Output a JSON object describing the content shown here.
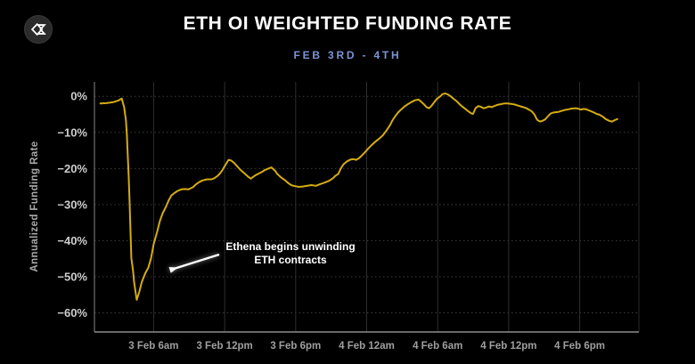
{
  "header": {
    "title": "ETH OI WEIGHTED FUNDING RATE",
    "subtitle": "FEB 3RD - 4TH"
  },
  "logo": {
    "glyph": "diamond-sigma"
  },
  "colors": {
    "background": "#000000",
    "title": "#ffffff",
    "subtitle": "#7b94d3",
    "line": "#d4ac12",
    "grid_horizontal": "#3c3c3c",
    "grid_vertical": "#2f2f2f",
    "axis": "#8c8c8c",
    "y_tick_text": "#cdcdcd",
    "x_tick_text": "#9f9f9f",
    "annotation_text": "#ffffff"
  },
  "chart_data": {
    "type": "line",
    "title": "ETH OI WEIGHTED FUNDING RATE",
    "subtitle": "FEB 3RD - 4TH",
    "xlabel": "",
    "ylabel": "Annualized Funding Rate",
    "x_unit": "hours since 3 Feb 12am",
    "x_range": [
      1,
      47
    ],
    "y_range": [
      -65.3,
      4
    ],
    "y_ticks": [
      0,
      -10,
      -20,
      -30,
      -40,
      -50,
      -60
    ],
    "y_tick_labels": [
      "0%",
      "−10%",
      "−20%",
      "−30%",
      "−40%",
      "−50%",
      "−60%"
    ],
    "x_ticks": [
      6,
      12,
      18,
      24,
      30,
      36,
      42
    ],
    "x_tick_labels": [
      "3 Feb 6am",
      "3 Feb 12pm",
      "3 Feb 6pm",
      "4 Feb 12am",
      "4 Feb 6am",
      "4 Feb 12pm",
      "4 Feb 6pm"
    ],
    "grid": {
      "horizontal": "dotted",
      "vertical": "solid"
    },
    "legend": "none",
    "annotation": {
      "line1": "Ethena begins unwinding",
      "line2": "ETH contracts"
    },
    "series": [
      {
        "name": "ETH OI weighted funding rate (annualized %)",
        "color": "#d4ac12",
        "points": [
          [
            1.5,
            -2.0
          ],
          [
            2.0,
            -1.9
          ],
          [
            2.6,
            -1.6
          ],
          [
            3.0,
            -1.2
          ],
          [
            3.3,
            -0.6
          ],
          [
            3.51,
            -3.0
          ],
          [
            3.66,
            -6.6
          ],
          [
            3.74,
            -10.7
          ],
          [
            3.81,
            -16.0
          ],
          [
            3.89,
            -22.0
          ],
          [
            3.97,
            -29.0
          ],
          [
            4.04,
            -37.0
          ],
          [
            4.12,
            -44.8
          ],
          [
            4.27,
            -48.5
          ],
          [
            4.34,
            -51.3
          ],
          [
            4.49,
            -54.7
          ],
          [
            4.57,
            -56.4
          ],
          [
            4.79,
            -54.2
          ],
          [
            5.0,
            -51.5
          ],
          [
            5.3,
            -49.0
          ],
          [
            5.55,
            -47.5
          ],
          [
            5.77,
            -45.0
          ],
          [
            6.0,
            -41.0
          ],
          [
            6.3,
            -37.5
          ],
          [
            6.53,
            -34.5
          ],
          [
            6.75,
            -32.5
          ],
          [
            7.05,
            -30.5
          ],
          [
            7.28,
            -28.8
          ],
          [
            7.5,
            -27.5
          ],
          [
            7.8,
            -26.7
          ],
          [
            8.03,
            -26.2
          ],
          [
            8.34,
            -25.8
          ],
          [
            8.64,
            -25.7
          ],
          [
            8.94,
            -25.8
          ],
          [
            9.32,
            -25.2
          ],
          [
            9.54,
            -24.5
          ],
          [
            9.84,
            -23.8
          ],
          [
            10.14,
            -23.3
          ],
          [
            10.52,
            -23.0
          ],
          [
            10.9,
            -23.0
          ],
          [
            11.12,
            -22.7
          ],
          [
            11.35,
            -22.2
          ],
          [
            11.58,
            -21.5
          ],
          [
            11.8,
            -20.5
          ],
          [
            12.03,
            -19.2
          ],
          [
            12.33,
            -17.6
          ],
          [
            12.56,
            -17.8
          ],
          [
            12.78,
            -18.4
          ],
          [
            13.01,
            -19.2
          ],
          [
            13.31,
            -20.3
          ],
          [
            13.69,
            -21.4
          ],
          [
            13.99,
            -22.3
          ],
          [
            14.21,
            -22.8
          ],
          [
            14.51,
            -22.1
          ],
          [
            14.82,
            -21.5
          ],
          [
            15.12,
            -21.0
          ],
          [
            15.42,
            -20.4
          ],
          [
            15.72,
            -20.0
          ],
          [
            15.95,
            -19.7
          ],
          [
            16.25,
            -20.6
          ],
          [
            16.47,
            -21.6
          ],
          [
            16.78,
            -22.5
          ],
          [
            17.08,
            -23.2
          ],
          [
            17.38,
            -24.1
          ],
          [
            17.68,
            -24.7
          ],
          [
            17.98,
            -24.9
          ],
          [
            18.28,
            -25.1
          ],
          [
            18.58,
            -25.0
          ],
          [
            18.96,
            -24.8
          ],
          [
            19.34,
            -24.6
          ],
          [
            19.71,
            -24.8
          ],
          [
            20.09,
            -24.3
          ],
          [
            20.47,
            -23.9
          ],
          [
            20.84,
            -23.4
          ],
          [
            21.15,
            -22.7
          ],
          [
            21.37,
            -22.0
          ],
          [
            21.6,
            -21.5
          ],
          [
            21.82,
            -20.0
          ],
          [
            22.05,
            -18.8
          ],
          [
            22.35,
            -18.0
          ],
          [
            22.65,
            -17.5
          ],
          [
            22.88,
            -17.4
          ],
          [
            23.11,
            -17.6
          ],
          [
            23.33,
            -17.2
          ],
          [
            23.56,
            -16.5
          ],
          [
            23.86,
            -15.5
          ],
          [
            24.16,
            -14.4
          ],
          [
            24.46,
            -13.4
          ],
          [
            24.76,
            -12.5
          ],
          [
            25.07,
            -11.7
          ],
          [
            25.37,
            -10.8
          ],
          [
            25.67,
            -9.5
          ],
          [
            25.97,
            -8.0
          ],
          [
            26.19,
            -6.6
          ],
          [
            26.42,
            -5.5
          ],
          [
            26.65,
            -4.5
          ],
          [
            26.87,
            -3.8
          ],
          [
            27.17,
            -2.9
          ],
          [
            27.48,
            -2.2
          ],
          [
            27.78,
            -1.6
          ],
          [
            28.08,
            -1.1
          ],
          [
            28.38,
            -0.9
          ],
          [
            28.61,
            -1.5
          ],
          [
            28.83,
            -2.2
          ],
          [
            29.06,
            -3.0
          ],
          [
            29.28,
            -3.3
          ],
          [
            29.51,
            -2.5
          ],
          [
            29.74,
            -1.5
          ],
          [
            29.96,
            -0.6
          ],
          [
            30.19,
            -0.1
          ],
          [
            30.41,
            0.6
          ],
          [
            30.64,
            0.8
          ],
          [
            30.87,
            0.5
          ],
          [
            31.09,
            0.0
          ],
          [
            31.39,
            -0.8
          ],
          [
            31.62,
            -1.4
          ],
          [
            31.92,
            -2.4
          ],
          [
            32.22,
            -3.2
          ],
          [
            32.52,
            -4.0
          ],
          [
            32.82,
            -4.7
          ],
          [
            32.98,
            -4.9
          ],
          [
            33.2,
            -3.3
          ],
          [
            33.43,
            -2.7
          ],
          [
            33.65,
            -2.9
          ],
          [
            33.88,
            -3.3
          ],
          [
            34.11,
            -3.1
          ],
          [
            34.33,
            -2.8
          ],
          [
            34.56,
            -3.0
          ],
          [
            34.78,
            -2.7
          ],
          [
            35.01,
            -2.4
          ],
          [
            35.31,
            -2.2
          ],
          [
            35.61,
            -2.0
          ],
          [
            35.91,
            -2.0
          ],
          [
            36.21,
            -2.1
          ],
          [
            36.52,
            -2.3
          ],
          [
            36.82,
            -2.6
          ],
          [
            37.12,
            -2.9
          ],
          [
            37.42,
            -3.2
          ],
          [
            37.72,
            -3.7
          ],
          [
            37.95,
            -4.2
          ],
          [
            38.17,
            -5.0
          ],
          [
            38.4,
            -6.5
          ],
          [
            38.63,
            -7.0
          ],
          [
            38.85,
            -6.8
          ],
          [
            39.08,
            -6.4
          ],
          [
            39.3,
            -5.6
          ],
          [
            39.53,
            -4.8
          ],
          [
            39.76,
            -4.5
          ],
          [
            39.98,
            -4.4
          ],
          [
            40.21,
            -4.3
          ],
          [
            40.43,
            -4.1
          ],
          [
            40.73,
            -3.8
          ],
          [
            41.04,
            -3.6
          ],
          [
            41.34,
            -3.4
          ],
          [
            41.64,
            -3.3
          ],
          [
            41.86,
            -3.4
          ],
          [
            42.09,
            -3.7
          ],
          [
            42.32,
            -3.5
          ],
          [
            42.54,
            -3.6
          ],
          [
            42.77,
            -3.9
          ],
          [
            42.99,
            -4.2
          ],
          [
            43.22,
            -4.5
          ],
          [
            43.45,
            -4.9
          ],
          [
            43.67,
            -5.1
          ],
          [
            43.97,
            -5.7
          ],
          [
            44.2,
            -6.3
          ],
          [
            44.5,
            -6.8
          ],
          [
            44.73,
            -7.0
          ],
          [
            44.95,
            -6.6
          ],
          [
            45.18,
            -6.3
          ]
        ]
      }
    ]
  }
}
